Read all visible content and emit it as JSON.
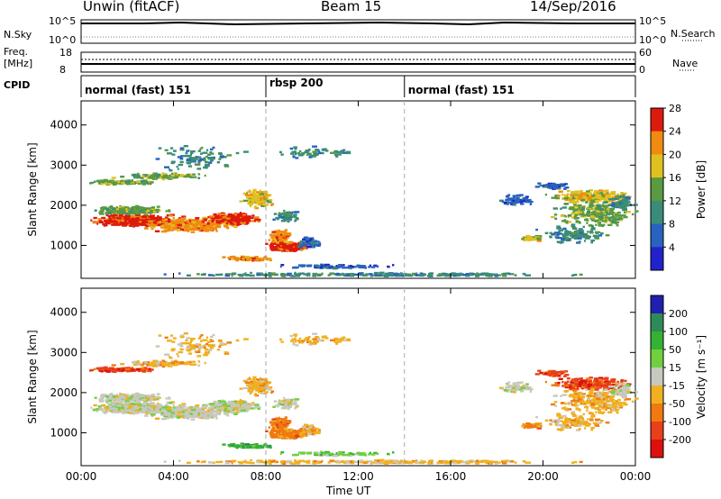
{
  "header": {
    "radar": "Unwin (fitACF)",
    "beam": "Beam 15",
    "date": "14/Sep/2016"
  },
  "top_panels": {
    "nsky_label": "N.Sky",
    "nsky_ticks": [
      "10^5",
      "10^0"
    ],
    "nsearch_label": "N.Search",
    "nsearch_ticks": [
      "10^5",
      "10^0"
    ],
    "freq_label_1": "Freq.",
    "freq_label_2": "[MHz]",
    "freq_ticks": [
      "18",
      "8"
    ],
    "nave_label": "Nave",
    "nave_ticks": [
      "60",
      "0"
    ],
    "cpid_label": "CPID",
    "cpid_modes": [
      {
        "name": "normal (fast) 151",
        "start_hour": 0,
        "end_hour": 8.0
      },
      {
        "name": "rbsp 200",
        "start_hour": 8.0,
        "end_hour": 14.0
      },
      {
        "name": "normal (fast) 151",
        "start_hour": 14.0,
        "end_hour": 24.0
      }
    ]
  },
  "chart_data": [
    {
      "type": "heatmap",
      "title": "",
      "xlabel": "Time UT",
      "ylabel": "Slant Range [km]",
      "xlim_hours": [
        0,
        24
      ],
      "ylim": [
        180,
        4600
      ],
      "xticks": [
        "00:00",
        "04:00",
        "08:00",
        "12:00",
        "16:00",
        "20:00",
        "00:00"
      ],
      "yticks": [
        1000,
        2000,
        3000,
        4000
      ],
      "colorbar": {
        "label": "Power [dB]",
        "ticks": [
          "4",
          "8",
          "12",
          "16",
          "20",
          "24",
          "28"
        ]
      },
      "colors": [
        "#2222cc",
        "#2a62c0",
        "#3a8c78",
        "#5a9a40",
        "#e0c020",
        "#f08a10",
        "#dd1a0e"
      ]
    },
    {
      "type": "heatmap",
      "title": "",
      "xlabel": "Time UT",
      "ylabel": "Slant Range [km]",
      "xlim_hours": [
        0,
        24
      ],
      "ylim": [
        180,
        4600
      ],
      "xticks": [
        "00:00",
        "04:00",
        "08:00",
        "12:00",
        "16:00",
        "20:00",
        "00:00"
      ],
      "yticks": [
        1000,
        2000,
        3000,
        4000
      ],
      "colorbar": {
        "label": "Velocity [m s⁻¹]",
        "ticks": [
          "200",
          "100",
          "50",
          "15",
          "-15",
          "-50",
          "-100",
          "-200"
        ]
      },
      "colors": [
        "#2020b0",
        "#2e8b57",
        "#34b233",
        "#70d040",
        "#c8c8c0",
        "#f0b020",
        "#f07a10",
        "#e8401a",
        "#dd1010"
      ]
    }
  ],
  "xaxis": {
    "label": "Time UT",
    "ticks": [
      "00:00",
      "04:00",
      "08:00",
      "12:00",
      "16:00",
      "20:00",
      "00:00"
    ]
  }
}
